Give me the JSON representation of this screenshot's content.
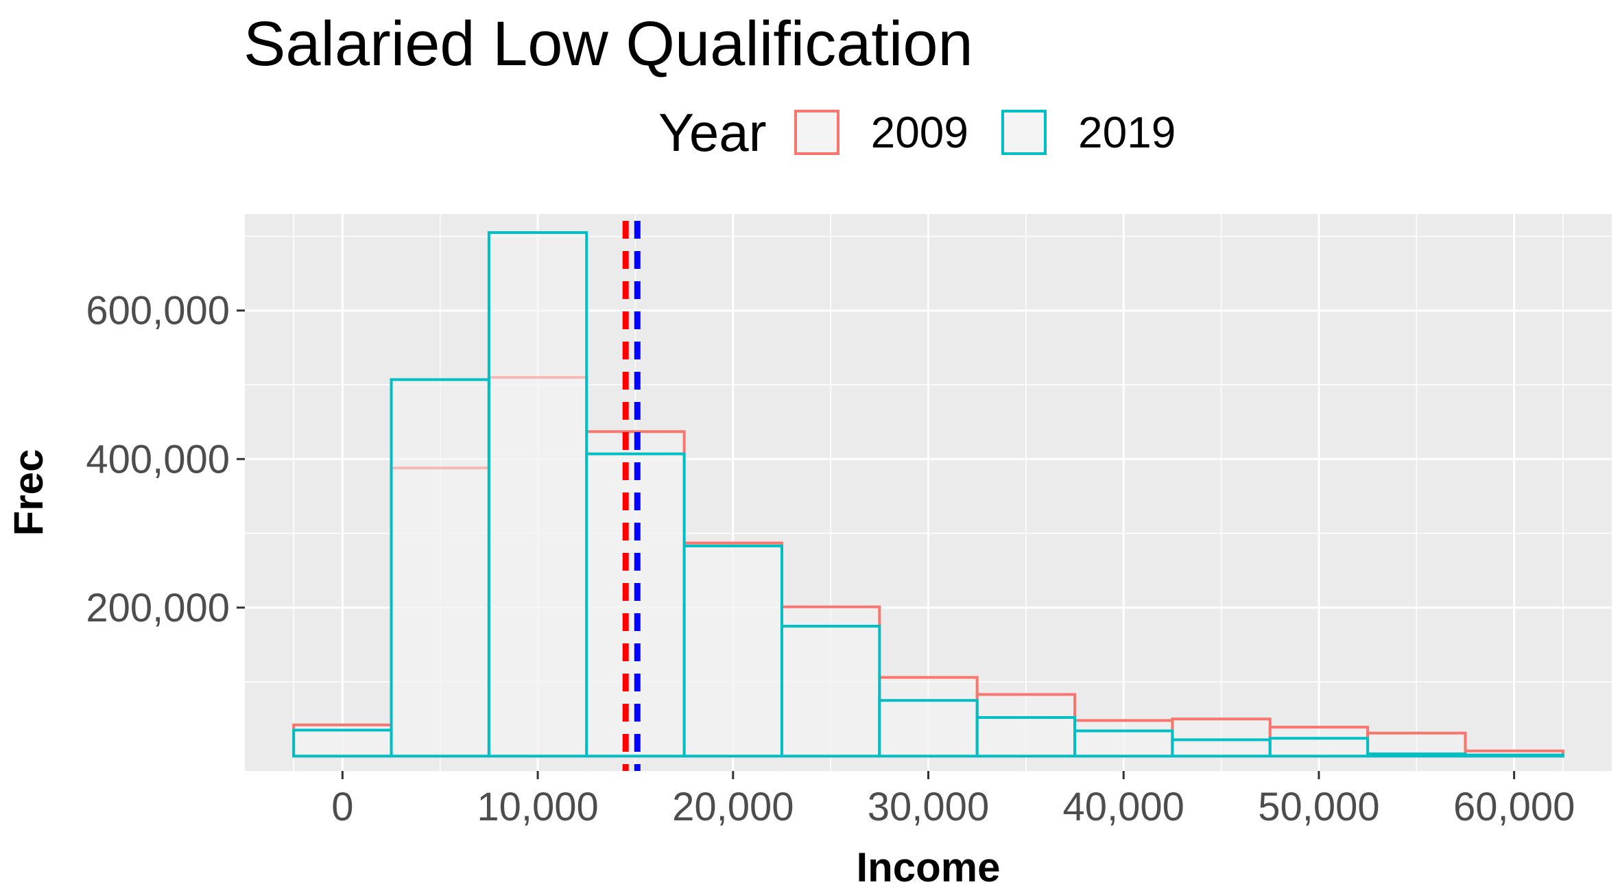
{
  "chart_data": {
    "type": "histogram",
    "title": "Salaried Low Qualification",
    "xlabel": "Income",
    "ylabel": "Frec",
    "xlim": [
      -5000,
      65000
    ],
    "ylim": [
      -20000,
      730000
    ],
    "x_ticks": [
      0,
      10000,
      20000,
      30000,
      40000,
      50000,
      60000
    ],
    "x_tick_labels": [
      "0",
      "10,000",
      "20,000",
      "30,000",
      "40,000",
      "50,000",
      "60,000"
    ],
    "y_ticks": [
      200000,
      400000,
      600000
    ],
    "y_tick_labels": [
      "200,000",
      "400,000",
      "600,000"
    ],
    "bin_width": 5000,
    "bin_centers": [
      0,
      5000,
      10000,
      15000,
      20000,
      25000,
      30000,
      35000,
      40000,
      45000,
      50000,
      55000,
      60000
    ],
    "legend": {
      "title": "Year",
      "position": "top"
    },
    "grid": true,
    "series": [
      {
        "name": "2009",
        "color": "#F8766D",
        "values": [
          42000,
          388000,
          510000,
          437000,
          287000,
          201000,
          106000,
          83000,
          48000,
          50000,
          39000,
          31000,
          7000
        ]
      },
      {
        "name": "2019",
        "color": "#00BFC4",
        "values": [
          35000,
          507000,
          705000,
          407000,
          283000,
          175000,
          75000,
          52000,
          34000,
          22000,
          24000,
          3000,
          1500
        ]
      }
    ],
    "reference_lines": [
      {
        "x": 14500,
        "color": "#FF0000",
        "style": "dashed"
      },
      {
        "x": 15100,
        "color": "#0000FF",
        "style": "dashed"
      }
    ]
  }
}
